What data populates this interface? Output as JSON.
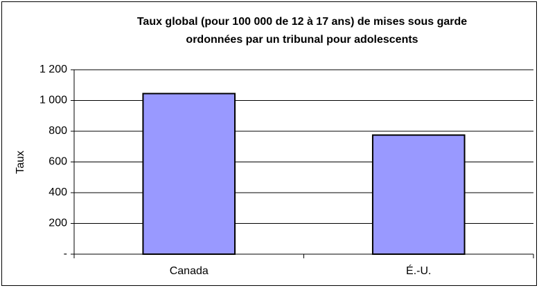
{
  "chart_data": {
    "type": "bar",
    "title": [
      "Taux global (pour 100 000 de 12 à 17 ans) de mises sous garde",
      "ordonnées par un tribunal pour adolescents"
    ],
    "y_label": "Taux",
    "categories": [
      "Canada",
      "É.-U."
    ],
    "values": [
      1045,
      775
    ],
    "color": "#9999ff",
    "ylim": [
      0,
      1200
    ],
    "yticks": [
      {
        "value": 0,
        "label": "-"
      },
      200,
      400,
      600,
      800,
      {
        "value": 1000,
        "label": "1 000"
      },
      {
        "value": 1200,
        "label": "1 200"
      }
    ],
    "grid": true
  }
}
